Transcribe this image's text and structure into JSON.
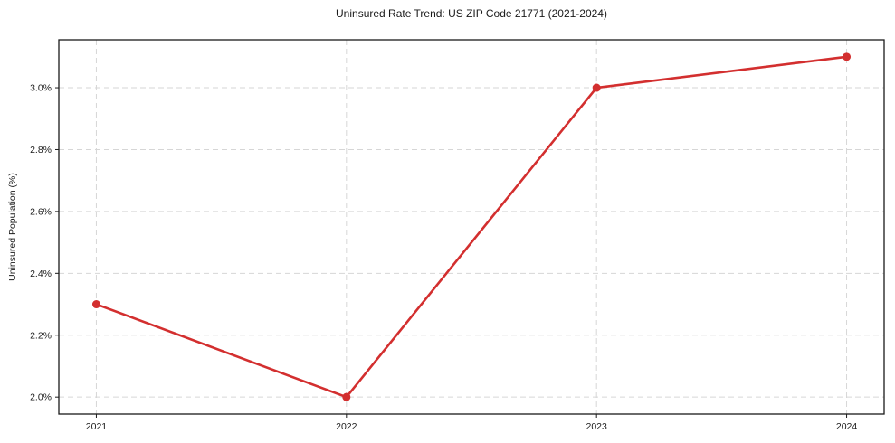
{
  "chart_data": {
    "type": "line",
    "title": "Uninsured Rate Trend: US ZIP Code 21771 (2021-2024)",
    "xlabel": "",
    "ylabel": "Uninsured Population (%)",
    "series_name": "Uninsured Rate",
    "x": [
      2021,
      2022,
      2023,
      2024
    ],
    "values": [
      2.3,
      2.0,
      3.0,
      3.1
    ],
    "x_tick_labels": [
      "2021",
      "2022",
      "2023",
      "2024"
    ],
    "y_ticks": [
      2.0,
      2.2,
      2.4,
      2.6,
      2.8,
      3.0
    ],
    "y_tick_labels": [
      "2.0%",
      "2.2%",
      "2.4%",
      "2.6%",
      "2.8%",
      "3.0%"
    ],
    "xlim": [
      2020.85,
      2024.15
    ],
    "ylim": [
      1.945,
      3.155
    ],
    "grid": true,
    "grid_line_style": "dashed",
    "legend_position": "none",
    "line_color": "#d32f2f",
    "marker": "circle",
    "grid_color": "#d6d6d6",
    "axis_color": "#1a1a1a",
    "background_color": "#ffffff"
  }
}
